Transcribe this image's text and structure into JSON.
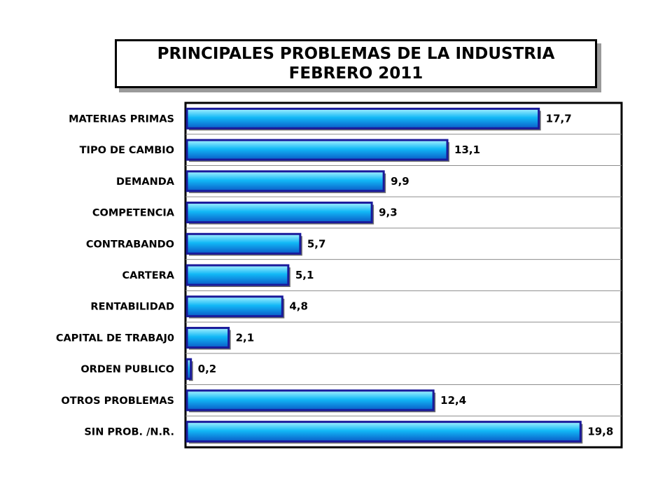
{
  "title": {
    "line1": "PRINCIPALES PROBLEMAS DE LA INDUSTRIA",
    "line2": "FEBRERO 2011"
  },
  "colors": {
    "bar_fill_top": "#a8f2ff",
    "bar_fill_mid": "#12b8f6",
    "bar_fill_bottom": "#0a5cc8",
    "bar_border": "#1a1a9a",
    "plot_border": "#000000",
    "gridline": "#8c8c8c",
    "label_text": "#000000"
  },
  "chart_data": {
    "type": "bar",
    "orientation": "horizontal",
    "title": "PRINCIPALES PROBLEMAS DE LA INDUSTRIA FEBRERO 2011",
    "categories": [
      "MATERIAS PRIMAS",
      "TIPO DE CAMBIO",
      "DEMANDA",
      "COMPETENCIA",
      "CONTRABANDO",
      "CARTERA",
      "RENTABILIDAD",
      "CAPITAL DE TRABAJ0",
      "ORDEN PUBLICO",
      "OTROS PROBLEMAS",
      "SIN PROB. /N.R."
    ],
    "values": [
      17.7,
      13.1,
      9.9,
      9.3,
      5.7,
      5.1,
      4.8,
      2.1,
      0.2,
      12.4,
      19.8
    ],
    "value_labels": [
      "17,7",
      "13,1",
      "9,9",
      "9,3",
      "5,7",
      "5,1",
      "4,8",
      "2,1",
      "0,2",
      "12,4",
      "19,8"
    ],
    "xlim": [
      0,
      22
    ],
    "grid": true,
    "legend": "none"
  }
}
